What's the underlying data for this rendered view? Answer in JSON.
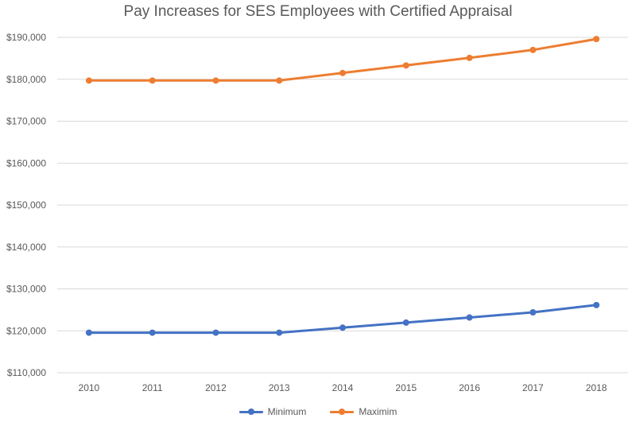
{
  "chart_data": {
    "type": "line",
    "title": "Pay Increases for SES Employees with Certified Appraisal",
    "categories": [
      "2010",
      "2011",
      "2012",
      "2013",
      "2014",
      "2015",
      "2016",
      "2017",
      "2018"
    ],
    "series": [
      {
        "name": "Minimum",
        "color": "#4472C4",
        "values": [
          119554,
          119554,
          119554,
          119554,
          120749,
          121956,
          123175,
          124406,
          126148
        ]
      },
      {
        "name": "Maximim",
        "color": "#ED7D31",
        "values": [
          179700,
          179700,
          179700,
          179700,
          181500,
          183300,
          185100,
          187000,
          189600
        ]
      }
    ],
    "ylim": [
      110000,
      190000
    ],
    "yticks": [
      "$110,000",
      "$120,000",
      "$130,000",
      "$140,000",
      "$150,000",
      "$160,000",
      "$170,000",
      "$180,000",
      "$190,000"
    ],
    "grid": true,
    "legend_position": "bottom"
  }
}
